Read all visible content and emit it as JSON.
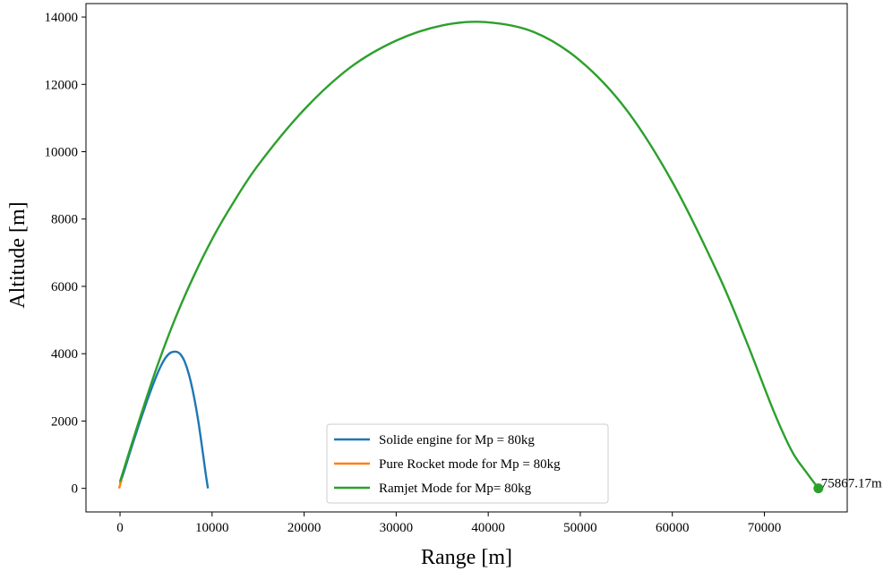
{
  "chart_data": {
    "type": "line",
    "title": "",
    "xlabel": "Range [m]",
    "ylabel": "Altitude [m]",
    "xlim": [
      -3700,
      79000
    ],
    "ylim": [
      -700,
      14400
    ],
    "xticks": [
      0,
      10000,
      20000,
      30000,
      40000,
      50000,
      60000,
      70000
    ],
    "yticks": [
      0,
      2000,
      4000,
      6000,
      8000,
      10000,
      12000,
      14000
    ],
    "grid": false,
    "legend_position": "lower-center",
    "series": [
      {
        "name": "Solide engine for Mp = 80kg",
        "color": "#1f77b4",
        "x": [
          0,
          500,
          1000,
          1500,
          2000,
          2500,
          3000,
          3500,
          4000,
          4500,
          5000,
          5500,
          6000,
          6300,
          6600,
          7000,
          7500,
          8000,
          8500,
          9000,
          9300,
          9550
        ],
        "y": [
          150,
          560,
          1000,
          1430,
          1850,
          2250,
          2650,
          3020,
          3370,
          3670,
          3900,
          4030,
          4060,
          4040,
          3970,
          3780,
          3370,
          2770,
          2000,
          1050,
          450,
          0
        ]
      },
      {
        "name": "Pure Rocket mode for Mp = 80kg",
        "color": "#ff7f0e",
        "x": [
          -100,
          0,
          100,
          200
        ],
        "y": [
          0,
          100,
          200,
          300
        ]
      },
      {
        "name": "Ramjet Mode for Mp= 80kg",
        "color": "#2ca02c",
        "x": [
          0,
          2000,
          4000,
          6000,
          8000,
          10000,
          12000,
          15000,
          20000,
          25000,
          30000,
          35000,
          39700,
          45000,
          50000,
          55000,
          60000,
          65000,
          68000,
          71000,
          73000,
          74500,
          75867
        ],
        "y": [
          200,
          1950,
          3600,
          5050,
          6300,
          7400,
          8350,
          9600,
          11250,
          12500,
          13300,
          13750,
          13850,
          13550,
          12700,
          11250,
          9100,
          6350,
          4400,
          2300,
          1100,
          500,
          0
        ]
      }
    ],
    "endpoint": {
      "x": 75867.17,
      "y": 0,
      "label": "75867.17m",
      "color": "#2ca02c"
    }
  }
}
